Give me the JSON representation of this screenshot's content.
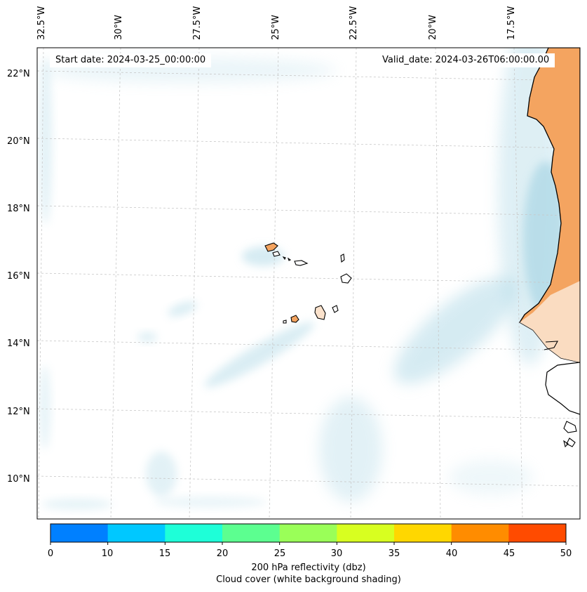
{
  "map": {
    "start_date": "Start date: 2024-03-25_00:00:00",
    "valid_date": "Valid_date: 2024-03-26T06:00:00.00",
    "longitude_labels": [
      "32.5°W",
      "30°W",
      "27.5°W",
      "25°W",
      "22.5°W",
      "20°W",
      "17.5°W"
    ],
    "latitude_labels": [
      "22°N",
      "20°N",
      "18°N",
      "16°N",
      "14°N",
      "12°N",
      "10°N"
    ],
    "colors": {
      "land": "#f4a460",
      "cloud": "#add8e6",
      "coastline": "#000000",
      "gridline": "#c8c8c8"
    }
  },
  "colorbar": {
    "ticks": [
      "0",
      "10",
      "15",
      "20",
      "25",
      "30",
      "35",
      "40",
      "45",
      "50"
    ],
    "colors": [
      "#0080ff",
      "#00c8ff",
      "#1effd8",
      "#5cff90",
      "#9aff58",
      "#d8ff20",
      "#ffd700",
      "#ff8c00",
      "#ff4b00"
    ],
    "label": "200 hPa reflectivity (dbz)",
    "sublabel": "Cloud cover (white background shading)"
  }
}
